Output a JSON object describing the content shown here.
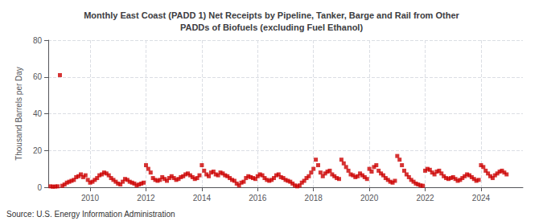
{
  "chart_data": {
    "type": "scatter",
    "title": "Monthly East Coast (PADD 1) Net Receipts by Pipeline, Tanker, Barge and Rail from Other\nPADDs of Biofuels (excluding Fuel Ethanol)",
    "ylabel": "Thousand Barrels per Day",
    "annotations": [
      "Source: U.S. Energy Information Administration"
    ],
    "color": "#cc0000",
    "marker": "square",
    "grid": true,
    "xlim": [
      2008.5,
      2025.5
    ],
    "xticks": [
      2010,
      2012,
      2014,
      2016,
      2018,
      2020,
      2022,
      2024
    ],
    "ylim": [
      0,
      80
    ],
    "yticks": [
      0,
      20,
      40,
      60,
      80
    ],
    "x": [
      2008.583,
      2008.667,
      2008.75,
      2008.833,
      2008.917,
      2009.0,
      2009.083,
      2009.167,
      2009.25,
      2009.333,
      2009.417,
      2009.5,
      2009.583,
      2009.667,
      2009.75,
      2009.833,
      2009.917,
      2010.0,
      2010.083,
      2010.167,
      2010.25,
      2010.333,
      2010.417,
      2010.5,
      2010.583,
      2010.667,
      2010.75,
      2010.833,
      2010.917,
      2011.0,
      2011.083,
      2011.167,
      2011.25,
      2011.333,
      2011.417,
      2011.5,
      2011.583,
      2011.667,
      2011.75,
      2011.833,
      2011.917,
      2012.0,
      2012.083,
      2012.167,
      2012.25,
      2012.333,
      2012.417,
      2012.5,
      2012.583,
      2012.667,
      2012.75,
      2012.833,
      2012.917,
      2013.0,
      2013.083,
      2013.167,
      2013.25,
      2013.333,
      2013.417,
      2013.5,
      2013.583,
      2013.667,
      2013.75,
      2013.833,
      2013.917,
      2014.0,
      2014.083,
      2014.167,
      2014.25,
      2014.333,
      2014.417,
      2014.5,
      2014.583,
      2014.667,
      2014.75,
      2014.833,
      2014.917,
      2015.0,
      2015.083,
      2015.167,
      2015.25,
      2015.333,
      2015.417,
      2015.5,
      2015.583,
      2015.667,
      2015.75,
      2015.833,
      2015.917,
      2016.0,
      2016.083,
      2016.167,
      2016.25,
      2016.333,
      2016.417,
      2016.5,
      2016.583,
      2016.667,
      2016.75,
      2016.833,
      2016.917,
      2017.0,
      2017.083,
      2017.167,
      2017.25,
      2017.333,
      2017.417,
      2017.5,
      2017.583,
      2017.667,
      2017.75,
      2017.833,
      2017.917,
      2018.0,
      2018.083,
      2018.167,
      2018.25,
      2018.333,
      2018.417,
      2018.5,
      2018.583,
      2018.667,
      2018.75,
      2018.833,
      2018.917,
      2019.0,
      2019.083,
      2019.167,
      2019.25,
      2019.333,
      2019.417,
      2019.5,
      2019.583,
      2019.667,
      2019.75,
      2019.833,
      2019.917,
      2020.0,
      2020.083,
      2020.167,
      2020.25,
      2020.333,
      2020.417,
      2020.5,
      2020.583,
      2020.667,
      2020.75,
      2020.833,
      2020.917,
      2021.0,
      2021.083,
      2021.167,
      2021.25,
      2021.333,
      2021.417,
      2021.5,
      2021.583,
      2021.667,
      2021.75,
      2021.833,
      2021.917,
      2022.0,
      2022.083,
      2022.167,
      2022.25,
      2022.333,
      2022.417,
      2022.5,
      2022.583,
      2022.667,
      2022.75,
      2022.833,
      2022.917,
      2023.0,
      2023.083,
      2023.167,
      2023.25,
      2023.333,
      2023.417,
      2023.5,
      2023.583,
      2023.667,
      2023.75,
      2023.833,
      2023.917,
      2024.0,
      2024.083,
      2024.167,
      2024.25,
      2024.333,
      2024.417,
      2024.5,
      2024.583,
      2024.667,
      2024.75,
      2024.833,
      2024.917
    ],
    "values": [
      0.5,
      0.3,
      0.4,
      0.5,
      61.0,
      0.8,
      1.5,
      2.5,
      3.0,
      3.5,
      4.0,
      5.5,
      6.0,
      7.0,
      5.5,
      6.5,
      4.0,
      2.5,
      3.0,
      4.0,
      5.0,
      6.5,
      7.0,
      8.0,
      7.5,
      6.5,
      5.0,
      4.0,
      3.0,
      2.0,
      1.5,
      3.0,
      4.5,
      4.0,
      3.0,
      2.5,
      2.0,
      1.0,
      1.5,
      2.0,
      2.5,
      12.0,
      10.0,
      8.0,
      5.0,
      4.0,
      3.5,
      4.0,
      5.5,
      4.5,
      3.5,
      5.0,
      6.0,
      5.0,
      4.0,
      4.5,
      5.5,
      6.0,
      7.0,
      7.5,
      6.5,
      5.5,
      4.5,
      5.0,
      6.5,
      12.0,
      9.0,
      7.0,
      6.0,
      8.0,
      8.5,
      7.0,
      6.5,
      8.0,
      7.5,
      6.5,
      6.0,
      5.0,
      4.0,
      3.5,
      2.0,
      1.0,
      2.5,
      3.0,
      5.0,
      6.0,
      5.5,
      5.0,
      4.5,
      6.0,
      7.0,
      6.5,
      5.0,
      4.0,
      3.5,
      4.0,
      5.0,
      6.5,
      7.0,
      5.5,
      5.0,
      4.0,
      3.5,
      3.0,
      2.0,
      1.0,
      0.5,
      1.0,
      2.5,
      3.5,
      5.0,
      6.0,
      8.0,
      10.0,
      15.0,
      12.0,
      8.0,
      6.0,
      7.5,
      8.5,
      9.0,
      7.0,
      6.0,
      5.0,
      4.5,
      15.0,
      13.0,
      11.0,
      9.0,
      7.0,
      6.5,
      5.5,
      6.0,
      7.5,
      6.5,
      5.5,
      4.5,
      10.0,
      8.5,
      11.0,
      12.0,
      9.0,
      7.5,
      6.5,
      5.0,
      4.0,
      3.0,
      2.5,
      3.5,
      17.0,
      15.0,
      12.0,
      9.0,
      7.0,
      5.5,
      4.0,
      3.0,
      2.0,
      1.5,
      1.0,
      0.8,
      9.0,
      10.0,
      9.5,
      8.0,
      7.0,
      8.5,
      9.0,
      7.5,
      6.0,
      5.0,
      4.5,
      5.0,
      5.5,
      4.5,
      3.5,
      4.0,
      5.0,
      6.0,
      7.0,
      6.5,
      5.5,
      4.5,
      3.5,
      4.0,
      12.0,
      11.0,
      9.0,
      7.5,
      6.0,
      5.0,
      6.5,
      7.5,
      8.5,
      9.0,
      8.0,
      7.0
    ]
  }
}
